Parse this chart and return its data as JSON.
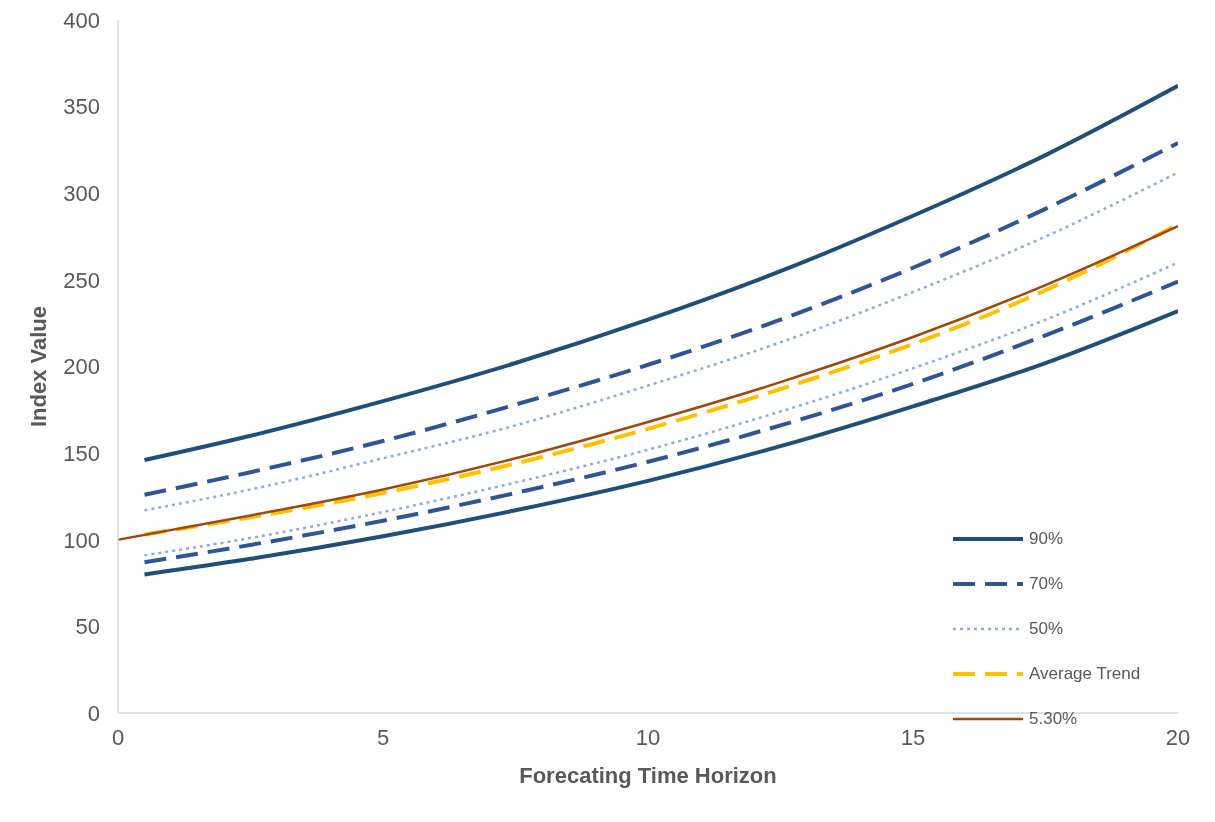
{
  "chart_data": {
    "type": "line",
    "xlabel": "Forecating Time Horizon",
    "ylabel": "Index Value",
    "xlim": [
      0,
      20
    ],
    "xticks": [
      0,
      5,
      10,
      15,
      20
    ],
    "ylim": [
      0,
      400
    ],
    "yticks": [
      0,
      50,
      100,
      150,
      200,
      250,
      300,
      350,
      400
    ],
    "grid": false,
    "legend": "bottom right",
    "series": [
      {
        "name": "90%",
        "color": "#1f4e79",
        "line_style": "solid",
        "x": [
          0.5,
          2.5,
          5,
          7.5,
          10,
          12.5,
          15,
          17.5,
          20
        ],
        "values": [
          146,
          160,
          180,
          202,
          227,
          255,
          287,
          322,
          362
        ]
      },
      {
        "color": "#1f4e79",
        "line_style": "solid",
        "x": [
          0.5,
          2.5,
          5,
          7.5,
          10,
          12.5,
          15,
          17.5,
          20
        ],
        "values": [
          80,
          89,
          102,
          117,
          134,
          154,
          177,
          202,
          232
        ]
      },
      {
        "name": "70%",
        "color": "#2f5597",
        "line_style": "dashed",
        "x": [
          0.5,
          2.5,
          5,
          7.5,
          10,
          12.5,
          15,
          17.5,
          20
        ],
        "values": [
          126,
          139,
          157,
          178,
          201,
          227,
          257,
          291,
          329
        ]
      },
      {
        "color": "#2f5597",
        "line_style": "dashed",
        "x": [
          0.5,
          2.5,
          5,
          7.5,
          10,
          12.5,
          15,
          17.5,
          20
        ],
        "values": [
          87,
          97,
          111,
          127,
          145,
          166,
          190,
          218,
          249
        ]
      },
      {
        "name": "50%",
        "color": "#8faadc",
        "line_style": "dotted",
        "x": [
          0.5,
          2.5,
          5,
          7.5,
          10,
          12.5,
          15,
          17.5,
          20
        ],
        "values": [
          117,
          129,
          147,
          166,
          189,
          214,
          243,
          275,
          312
        ]
      },
      {
        "color": "#8faadc",
        "line_style": "dotted",
        "x": [
          0.5,
          2.5,
          5,
          7.5,
          10,
          12.5,
          15,
          17.5,
          20
        ],
        "values": [
          91,
          101,
          116,
          133,
          152,
          174,
          199,
          227,
          260
        ]
      },
      {
        "name": "Average Trend",
        "color": "#ffc000",
        "line_style": "dashed",
        "x": [
          0.5,
          2.5,
          5,
          7.5,
          10,
          12.5,
          15,
          17.5,
          20
        ],
        "values": [
          103,
          113,
          127,
          144,
          164,
          187,
          213,
          244,
          282
        ]
      },
      {
        "name": "5.30%",
        "color": "#9e480e",
        "line_style": "solid",
        "x": [
          0,
          2.5,
          5,
          7.5,
          10,
          12.5,
          15,
          17.5,
          20
        ],
        "values": [
          100,
          114,
          129,
          147,
          168,
          191,
          217,
          247,
          281
        ]
      }
    ]
  }
}
